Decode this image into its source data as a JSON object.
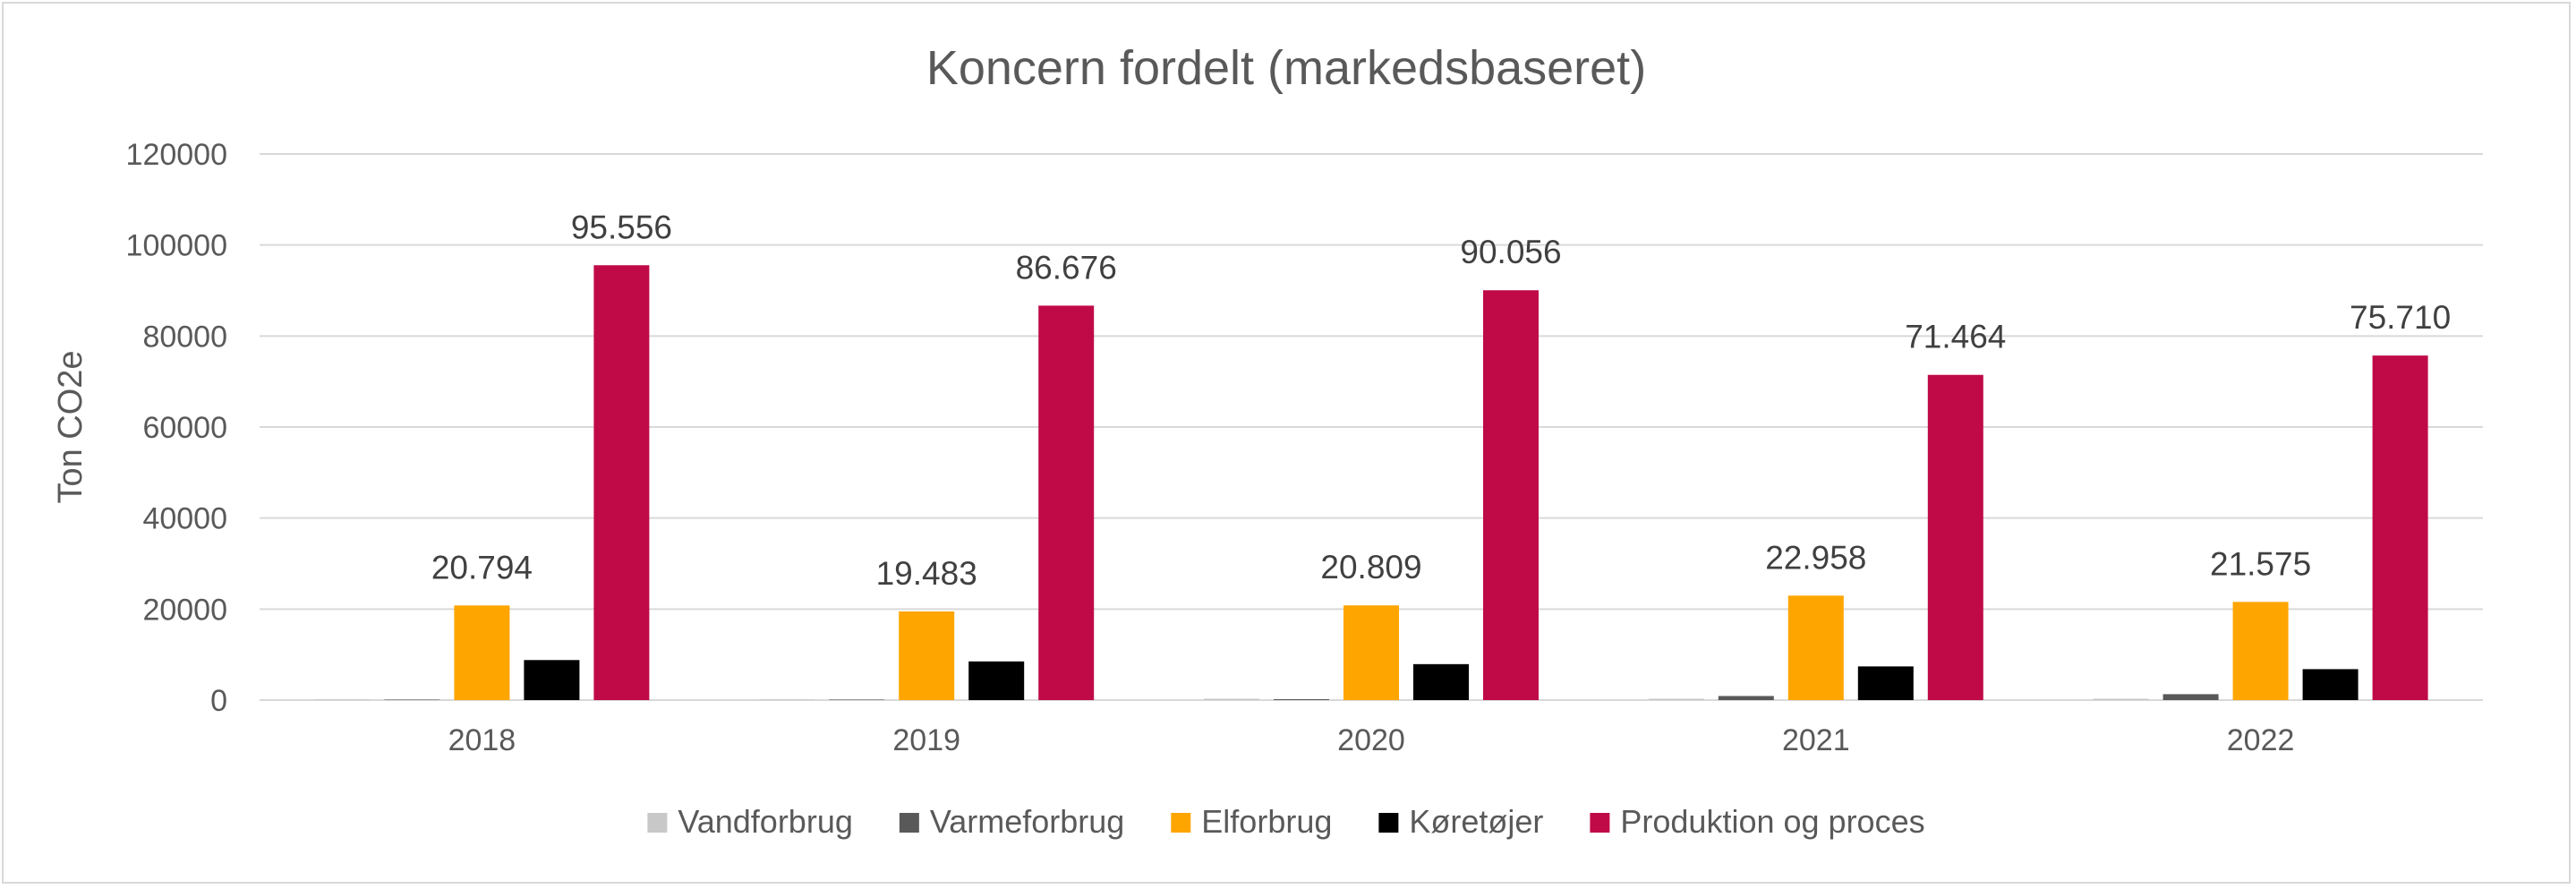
{
  "chart_data": {
    "type": "bar",
    "title": "Koncern fordelt (markedsbaseret)",
    "xlabel": "",
    "ylabel": "Ton CO2e",
    "ylim": [
      0,
      120000
    ],
    "yticks": [
      "0",
      "20000",
      "40000",
      "60000",
      "80000",
      "100000",
      "120000"
    ],
    "ytick_values": [
      0,
      20000,
      40000,
      60000,
      80000,
      100000,
      120000
    ],
    "grid": true,
    "legend_position": "bottom",
    "categories": [
      "2018",
      "2019",
      "2020",
      "2021",
      "2022"
    ],
    "series": [
      {
        "name": "Vandforbrug",
        "color": "#c8c8c8",
        "values": [
          150,
          150,
          300,
          300,
          300
        ],
        "labels": [
          "",
          "",
          "",
          "",
          ""
        ]
      },
      {
        "name": "Varmeforbrug",
        "color": "#595959",
        "values": [
          100,
          100,
          200,
          900,
          1300
        ],
        "labels": [
          "",
          "",
          "",
          "",
          ""
        ]
      },
      {
        "name": "Elforbrug",
        "color": "#ffa500",
        "values": [
          20794,
          19483,
          20809,
          22958,
          21575
        ],
        "labels": [
          "20.794",
          "19.483",
          "20.809",
          "22.958",
          "21.575"
        ]
      },
      {
        "name": "Køretøjer",
        "color": "#000000",
        "values": [
          8800,
          8500,
          7900,
          7400,
          6800
        ],
        "labels": [
          "",
          "",
          "",
          "",
          ""
        ]
      },
      {
        "name": "Produktion og proces",
        "color": "#c00a48",
        "values": [
          95556,
          86676,
          90056,
          71464,
          75710
        ],
        "labels": [
          "95.556",
          "86.676",
          "90.056",
          "71.464",
          "75.710"
        ]
      }
    ]
  }
}
